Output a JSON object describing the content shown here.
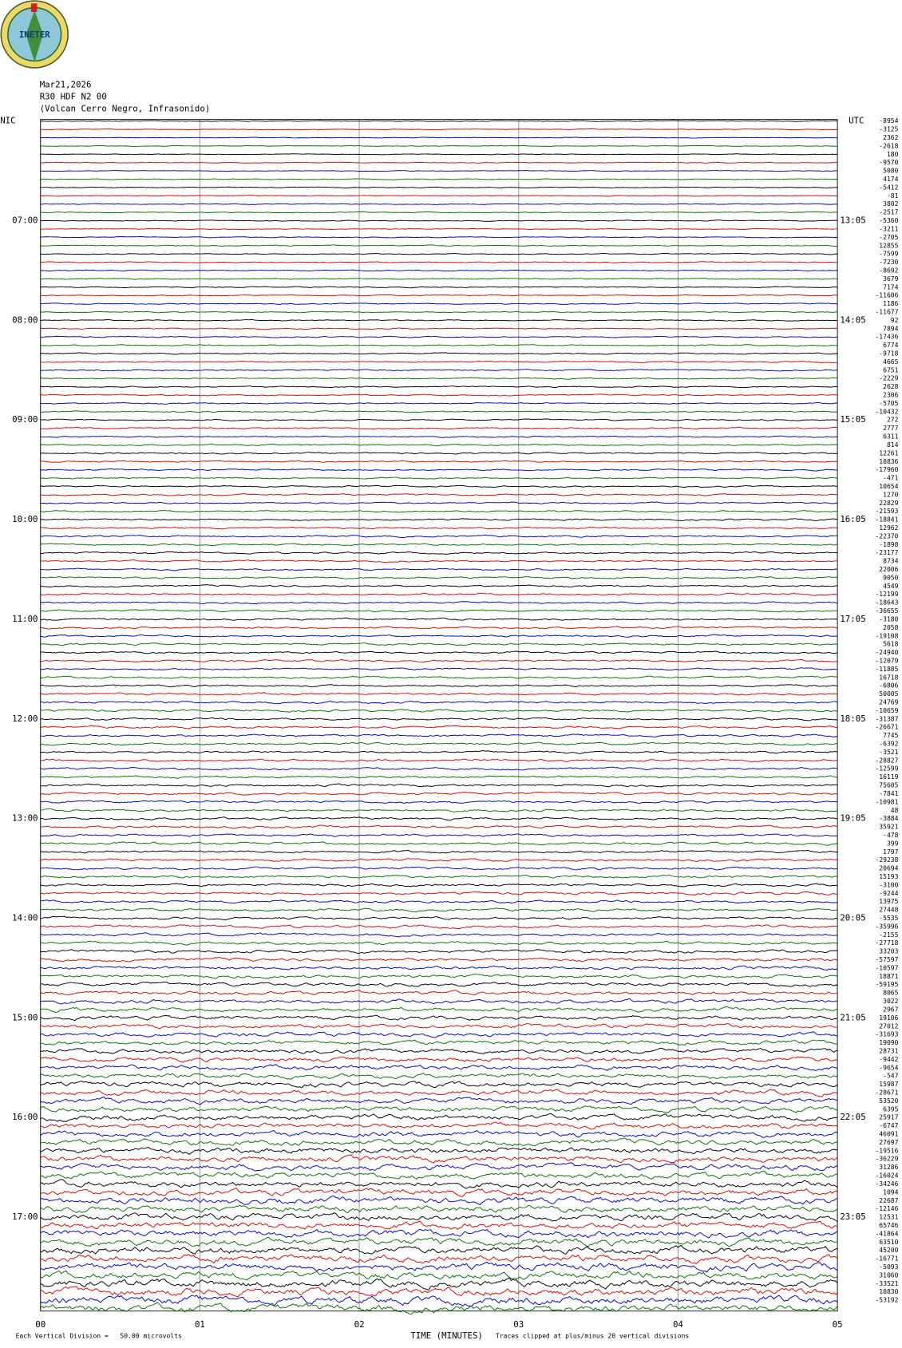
{
  "logo_text": "INETER",
  "header": {
    "date": "Mar21,2026",
    "station": "R30 HDF N2 00",
    "location": "(Volcan Cerro Negro, Infrasonido)"
  },
  "left_label": "NIC",
  "right_label": "UTC",
  "left_times": [
    "07:00",
    "08:00",
    "09:00",
    "10:00",
    "11:00",
    "12:00",
    "13:00",
    "14:00",
    "15:00",
    "16:00",
    "17:00"
  ],
  "right_times": [
    "13:05",
    "14:05",
    "15:05",
    "16:05",
    "17:05",
    "18:05",
    "19:05",
    "20:05",
    "21:05",
    "22:05",
    "23:05"
  ],
  "trace_offsets": [
    "-8954",
    "-3125",
    "2362",
    "-2618",
    "180",
    "-9570",
    "5080",
    "4174",
    "-5412",
    "-81",
    "3802",
    "-2517",
    "-5360",
    "-3211",
    "-2705",
    "12855",
    "-7599",
    "-7230",
    "-8692",
    "3679",
    "7174",
    "-11606",
    "1186",
    "-11677",
    "92",
    "7894",
    "-17436",
    "6774",
    "-9718",
    "4665",
    "6751",
    "-2229",
    "2628",
    "2306",
    "-5705",
    "-10432",
    "272",
    "2777",
    "6311",
    "814",
    "12261",
    "10836",
    "-17960",
    "-471",
    "10654",
    "1270",
    "22829",
    "-21593",
    "-18841",
    "12962",
    "-22370",
    "-1898",
    "-23177",
    "8734",
    "22006",
    "9050",
    "4549",
    "-12199",
    "-18643",
    "-36655",
    "-3180",
    "2058",
    "-19108",
    "5618",
    "-24940",
    "-12079",
    "-11885",
    "16718",
    "-6806",
    "50005",
    "24769",
    "-10659",
    "-31387",
    "-26671",
    "7745",
    "-6392",
    "-3521",
    "-28827",
    "-12599",
    "16119",
    "75605",
    "-7841",
    "-10981",
    "48",
    "-3884",
    "35921",
    "-478",
    "399",
    "1797",
    "-29238",
    "20694",
    "15193",
    "-3100",
    "-9244",
    "13975",
    "27448",
    "-5535",
    "-35996",
    "-2155",
    "-27718",
    "33203",
    "-57597",
    "-10597",
    "18871",
    "-59195",
    "8065",
    "3022",
    "2967",
    "19106",
    "27012",
    "-31693",
    "19090",
    "28731",
    "-9442",
    "-9654",
    "-547",
    "15987",
    "-28671",
    "53520",
    "6395",
    "25917",
    "-6747",
    "46091",
    "27697",
    "-19516",
    "-36229",
    "31286",
    "-16024",
    "-34246",
    "1094",
    "22687",
    "-12146",
    "12531",
    "65746",
    "-41864",
    "63510",
    "45200",
    "-16771",
    "-5093",
    "31060",
    "-33521",
    "10830",
    "-53192"
  ],
  "x_ticks": [
    "00",
    "01",
    "02",
    "03",
    "04",
    "05"
  ],
  "x_axis_label": "TIME (MINUTES)",
  "footer_left": "Each Vertical Division =   50.00 microvolts",
  "footer_right": "Traces clipped at plus/minus 20 vertical divisions"
}
